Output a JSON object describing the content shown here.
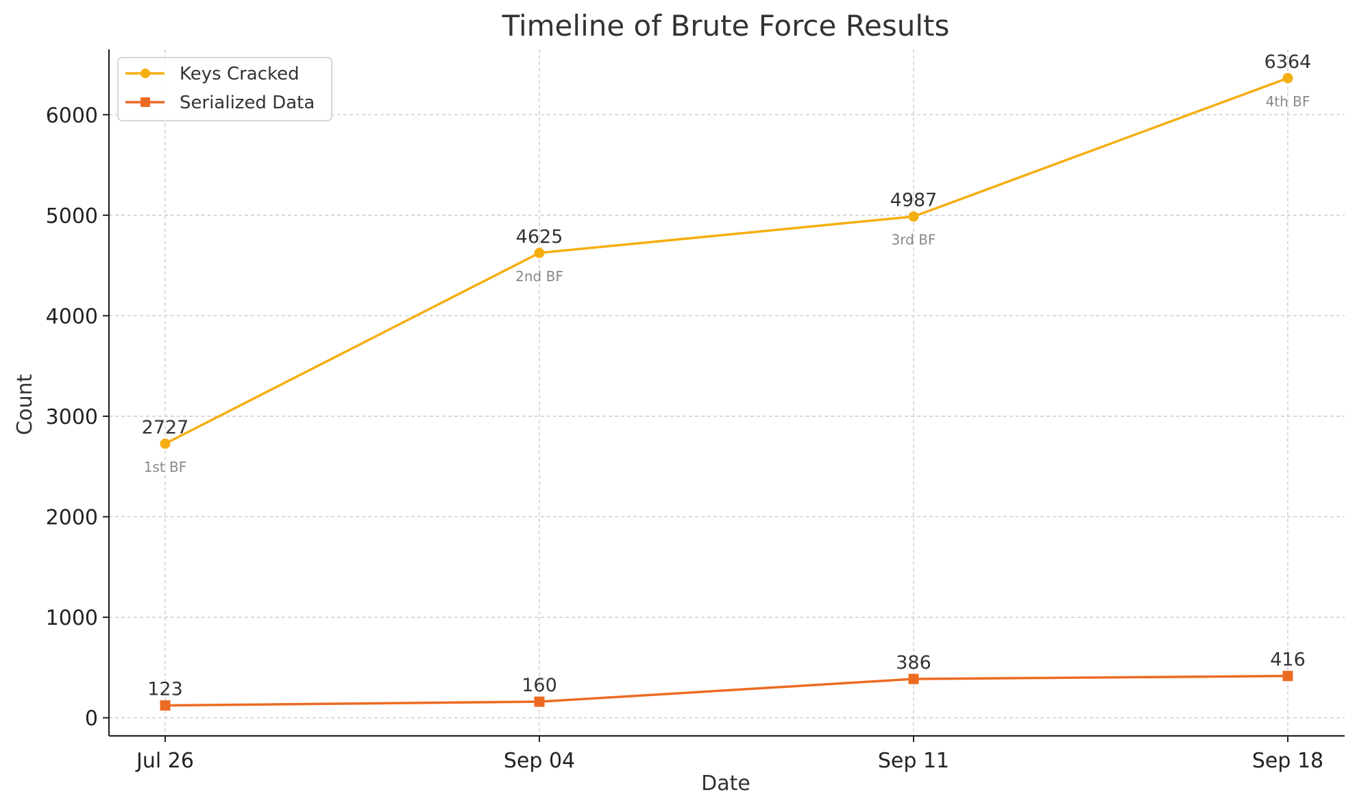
{
  "chart_data": {
    "type": "line",
    "title": "Timeline of Brute Force Results",
    "xlabel": "Date",
    "ylabel": "Count",
    "categories": [
      "Jul 26",
      "Sep 04",
      "Sep 11",
      "Sep 18"
    ],
    "ylim": [
      -180,
      6650
    ],
    "yticks": [
      0,
      1000,
      2000,
      3000,
      4000,
      5000,
      6000
    ],
    "grid": true,
    "legend_position": "top-left",
    "series": [
      {
        "name": "Keys Cracked",
        "values": [
          2727,
          4625,
          4987,
          6364
        ],
        "color": "#F5AE12",
        "marker": "circle",
        "annotations": [
          "1st BF",
          "2nd BF",
          "3rd BF",
          "4th BF"
        ]
      },
      {
        "name": "Serialized Data",
        "values": [
          123,
          160,
          386,
          416
        ],
        "color": "#EC6B22",
        "marker": "square"
      }
    ]
  }
}
